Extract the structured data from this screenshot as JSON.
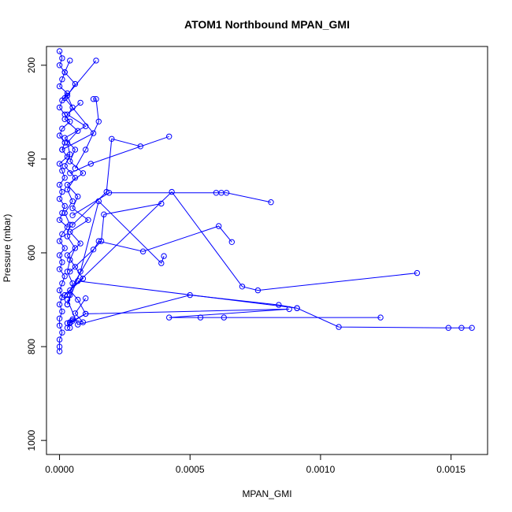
{
  "chart_data": {
    "type": "line",
    "title": "ATOM1 Northbound MPAN_GMI",
    "xlabel": "MPAN_GMI",
    "ylabel": "Pressure (mbar)",
    "xlim": [
      -5e-05,
      0.00164
    ],
    "ylim": [
      1030,
      160
    ],
    "y_reversed": true,
    "grid": false,
    "x_ticks": [
      0,
      0.0005,
      0.001,
      0.0015
    ],
    "x_tick_labels": [
      "0.0000",
      "0.0005",
      "0.0010",
      "0.0015"
    ],
    "y_ticks": [
      200,
      400,
      600,
      800,
      1000
    ],
    "y_tick_labels": [
      "200",
      "400",
      "600",
      "800",
      "1000"
    ],
    "color": "#0000ff",
    "series": [
      {
        "x": [
          0.0,
          1e-05,
          0.0,
          2e-05,
          1e-05,
          0.0,
          3e-05,
          1e-05,
          0.0,
          2e-05,
          4e-05,
          1e-05,
          0.0,
          2e-05,
          1e-05,
          3e-05,
          0.0,
          1e-05,
          2e-05,
          0.0,
          1e-05,
          0.0,
          2e-05,
          1e-05,
          0.0,
          3e-05,
          1e-05,
          0.0,
          2e-05,
          0.0,
          1e-05,
          0.0,
          2e-05,
          1e-05,
          0.0,
          1e-05,
          0.0,
          1e-05,
          0.0,
          0.0,
          1e-05,
          0.0,
          0.0,
          0.0
        ],
        "y": [
          170,
          185,
          200,
          215,
          230,
          245,
          260,
          275,
          290,
          305,
          320,
          335,
          350,
          365,
          380,
          395,
          410,
          425,
          440,
          455,
          470,
          485,
          500,
          515,
          530,
          545,
          560,
          575,
          590,
          605,
          620,
          635,
          650,
          665,
          680,
          695,
          710,
          725,
          740,
          755,
          770,
          785,
          800,
          810
        ]
      },
      {
        "x": [
          4e-05,
          2e-05,
          6e-05,
          3e-05,
          5e-05,
          2e-05,
          7e-05,
          3e-05,
          4e-05,
          2e-05,
          6e-05,
          3e-05,
          5e-05,
          2e-05,
          4e-05,
          3e-05,
          6e-05,
          4e-05,
          3e-05,
          5e-05,
          4e-05,
          3e-05
        ],
        "y": [
          190,
          215,
          240,
          265,
          290,
          315,
          340,
          365,
          390,
          415,
          440,
          465,
          490,
          515,
          540,
          565,
          590,
          615,
          640,
          665,
          690,
          710
        ]
      },
      {
        "x": [
          8e-05,
          3e-05,
          0.0001,
          2e-05,
          6e-05,
          4e-05,
          9e-05,
          3e-05,
          7e-05,
          5e-05,
          0.00011,
          4e-05,
          8e-05,
          3e-05,
          6e-05,
          9e-05,
          4e-05,
          7e-05,
          0.0001,
          5e-05,
          3e-05,
          4e-05
        ],
        "y": [
          280,
          305,
          330,
          355,
          380,
          405,
          430,
          455,
          480,
          505,
          530,
          555,
          580,
          605,
          630,
          655,
          680,
          700,
          730,
          745,
          750,
          760
        ]
      },
      {
        "x": [
          0.00042,
          0.00012,
          4e-05
        ],
        "y": [
          352,
          410,
          430
        ]
      },
      {
        "x": [
          0.00013,
          0.00014,
          0.00015,
          0.0001,
          6e-05
        ],
        "y": [
          272,
          272,
          320,
          380,
          420
        ]
      },
      {
        "x": [
          0.00014,
          2e-05,
          0.00013,
          1e-05
        ],
        "y": [
          190,
          270,
          345,
          380
        ]
      },
      {
        "x": [
          0.00031,
          0.0002,
          0.00018,
          5e-05
        ],
        "y": [
          373,
          357,
          470,
          540
        ]
      },
      {
        "x": [
          0.00081,
          0.00064,
          0.00062,
          0.0006,
          0.00019,
          5e-05
        ],
        "y": [
          492,
          472,
          472,
          472,
          472,
          520
        ]
      },
      {
        "x": [
          0.00039,
          0.00017,
          0.00016,
          0.00013,
          4e-05
        ],
        "y": [
          495,
          518,
          575,
          593,
          640
        ]
      },
      {
        "x": [
          0.00066,
          0.00061,
          0.00032,
          0.00015,
          3e-05
        ],
        "y": [
          577,
          543,
          597,
          575,
          690
        ]
      },
      {
        "x": [
          0.0004,
          0.00039,
          0.00015,
          8e-05,
          3e-05
        ],
        "y": [
          607,
          622,
          490,
          640,
          710
        ]
      },
      {
        "x": [
          0.00137,
          0.00076,
          0.0007,
          0.00043,
          2e-05
        ],
        "y": [
          643,
          680,
          672,
          470,
          690
        ]
      },
      {
        "x": [
          0.00091,
          0.00084,
          0.0005,
          7e-05,
          3e-05
        ],
        "y": [
          718,
          711,
          690,
          753,
          700
        ]
      },
      {
        "x": [
          0.00158,
          0.00154,
          0.00149,
          0.00107,
          0.00091,
          7e-05
        ],
        "y": [
          760,
          760,
          760,
          758,
          718,
          660
        ]
      },
      {
        "x": [
          0.00123,
          0.00063,
          0.00054,
          0.00042,
          0.00088,
          0.0001,
          4e-05
        ],
        "y": [
          738,
          738,
          738,
          738,
          720,
          730,
          750
        ]
      },
      {
        "x": [
          0.0001,
          6e-05,
          9e-05,
          5e-05,
          3e-05,
          4e-05
        ],
        "y": [
          697,
          729,
          748,
          742,
          760,
          748
        ]
      }
    ]
  }
}
